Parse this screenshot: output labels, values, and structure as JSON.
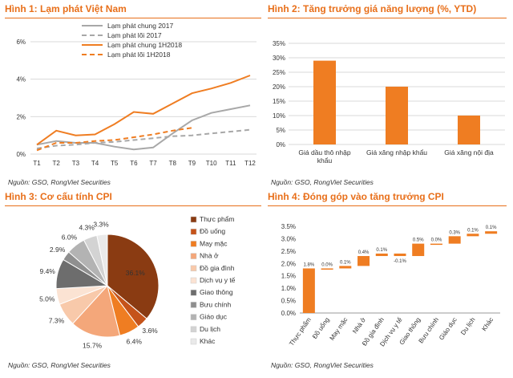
{
  "colors": {
    "title": "#E86F1A",
    "bar": "#EF7D22",
    "gray": "#A8A8A8",
    "grid": "#D9D9D9"
  },
  "fig1": {
    "title": "Hình 1: Lạm phát Việt Nam",
    "source": "Nguồn: GSO, RongViet Securities",
    "chart_data": {
      "type": "line",
      "x": [
        "T1",
        "T2",
        "T3",
        "T4",
        "T5",
        "T6",
        "T7",
        "T8",
        "T9",
        "T10",
        "T11",
        "T12"
      ],
      "ylim": [
        0,
        6
      ],
      "yticks": [
        "0%",
        "2%",
        "4%",
        "6%"
      ],
      "grid": "horizontal",
      "legend": "top-right",
      "series": [
        {
          "name": "Lạm phát chung 2017",
          "color": "#A8A8A8",
          "dash": false,
          "values": [
            0.5,
            0.7,
            0.6,
            0.6,
            0.4,
            0.25,
            0.35,
            1.1,
            1.8,
            2.2,
            2.4,
            2.6
          ]
        },
        {
          "name": "Lạm phát lõi 2017",
          "color": "#A8A8A8",
          "dash": true,
          "values": [
            0.3,
            0.45,
            0.5,
            0.6,
            0.65,
            0.75,
            0.85,
            0.95,
            1.0,
            1.1,
            1.2,
            1.3
          ]
        },
        {
          "name": "Lạm phát chung 1H2018",
          "color": "#EF7D22",
          "dash": false,
          "values": [
            0.5,
            1.25,
            1.0,
            1.05,
            1.6,
            2.25,
            2.15,
            2.7,
            3.25,
            3.5,
            3.8,
            4.2
          ]
        },
        {
          "name": "Lạm phát lõi 1H2018",
          "color": "#EF7D22",
          "dash": true,
          "values": [
            0.2,
            0.6,
            0.6,
            0.7,
            0.75,
            0.9,
            1.05,
            1.25,
            1.4,
            null,
            null,
            null
          ]
        }
      ]
    }
  },
  "fig2": {
    "title": "Hình 2: Tăng trưởng giá năng lượng (%, YTD)",
    "source": "Nguồn: GSO, RongViet Securities",
    "chart_data": {
      "type": "bar",
      "categories": [
        [
          "Giá dầu thô nhập",
          "khẩu"
        ],
        [
          "Giá xăng nhập khẩu"
        ],
        [
          "Giá xăng nội địa"
        ]
      ],
      "values": [
        29,
        20,
        10
      ],
      "ylim": [
        0,
        35
      ],
      "yticks": [
        "0%",
        "5%",
        "10%",
        "15%",
        "20%",
        "25%",
        "30%",
        "35%"
      ],
      "grid": "horizontal"
    }
  },
  "fig3": {
    "title": "Hình 3: Cơ cấu tính CPI",
    "source": "Nguồn: GSO, RongViet Securities",
    "chart_data": {
      "type": "pie",
      "legend": "right",
      "slices": [
        {
          "name": "Thực phẩm",
          "value": 36.1,
          "label": "36.1%",
          "color": "#8A3B12"
        },
        {
          "name": "Đồ uống",
          "value": 3.6,
          "label": "3.6%",
          "color": "#C5531A"
        },
        {
          "name": "May mặc",
          "value": 6.4,
          "label": "6.4%",
          "color": "#EF7D22"
        },
        {
          "name": "Nhà ở",
          "value": 15.7,
          "label": "15.7%",
          "color": "#F4A77A"
        },
        {
          "name": "Đồ gia đình",
          "value": 7.3,
          "label": "7.3%",
          "color": "#F8C9AA"
        },
        {
          "name": "Dịch vụ y tế",
          "value": 5.0,
          "label": "5.0%",
          "color": "#FBE3D3"
        },
        {
          "name": "Giao thông",
          "value": 9.4,
          "label": "9.4%",
          "color": "#6D6D6D"
        },
        {
          "name": "Bưu chính",
          "value": 2.9,
          "label": "2.9%",
          "color": "#8F8F8F"
        },
        {
          "name": "Giáo dục",
          "value": 6.0,
          "label": "6.0%",
          "color": "#B3B3B3"
        },
        {
          "name": "Du lịch",
          "value": 4.3,
          "label": "4.3%",
          "color": "#D3D3D3"
        },
        {
          "name": "Khác",
          "value": 3.3,
          "label": "3.3%",
          "color": "#EAEAEA"
        }
      ]
    }
  },
  "fig4": {
    "title": "Hình 4: Đóng góp vào tăng trưởng CPI",
    "source": "Nguồn: GSO, RongViet Securities",
    "chart_data": {
      "type": "bar",
      "subtype": "waterfall",
      "categories": [
        "Thực phẩm",
        "Đồ uống",
        "May mặc",
        "Nhà ở",
        "Đồ gia đình",
        "Dịch vụ y tế",
        "Giao thông",
        "Bưu chính",
        "Giáo dục",
        "Du lịch",
        "Khác"
      ],
      "values": [
        1.8,
        0.0,
        0.1,
        0.4,
        0.1,
        -0.1,
        0.5,
        0.0,
        0.3,
        0.1,
        0.1
      ],
      "labels": [
        "1.8%",
        "0.0%",
        "0.1%",
        "0.4%",
        "0.1%",
        "-0.1%",
        "0.5%",
        "0.0%",
        "0.3%",
        "0.1%",
        "0.1%"
      ],
      "ylim": [
        0,
        3.5
      ],
      "yticks": [
        "0.0%",
        "0.5%",
        "1.0%",
        "1.5%",
        "2.0%",
        "2.5%",
        "3.0%",
        "3.5%"
      ],
      "grid": "none"
    }
  }
}
